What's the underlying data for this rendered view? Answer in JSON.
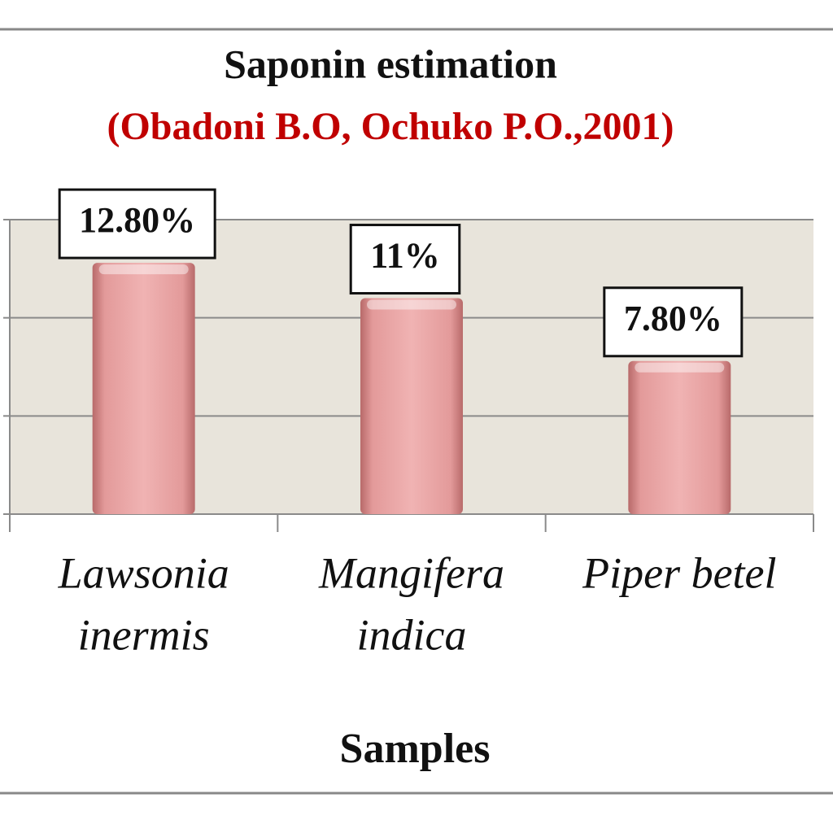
{
  "chart_data": {
    "type": "bar",
    "title": "Saponin estimation",
    "subtitle": "(Obadoni B.O, Ochuko P.O.,2001)",
    "xlabel": "Samples",
    "categories": [
      [
        "Lawsonia",
        "inermis"
      ],
      [
        "Mangifera",
        "indica"
      ],
      [
        "Piper betel"
      ]
    ],
    "values": [
      12.8,
      11,
      7.8
    ],
    "value_labels": [
      "12.80%",
      "11%",
      "7.80%"
    ],
    "color": "#e39a9a",
    "ylim": [
      0,
      15
    ],
    "yticks": [
      0,
      5,
      10,
      15
    ],
    "grid": true
  }
}
